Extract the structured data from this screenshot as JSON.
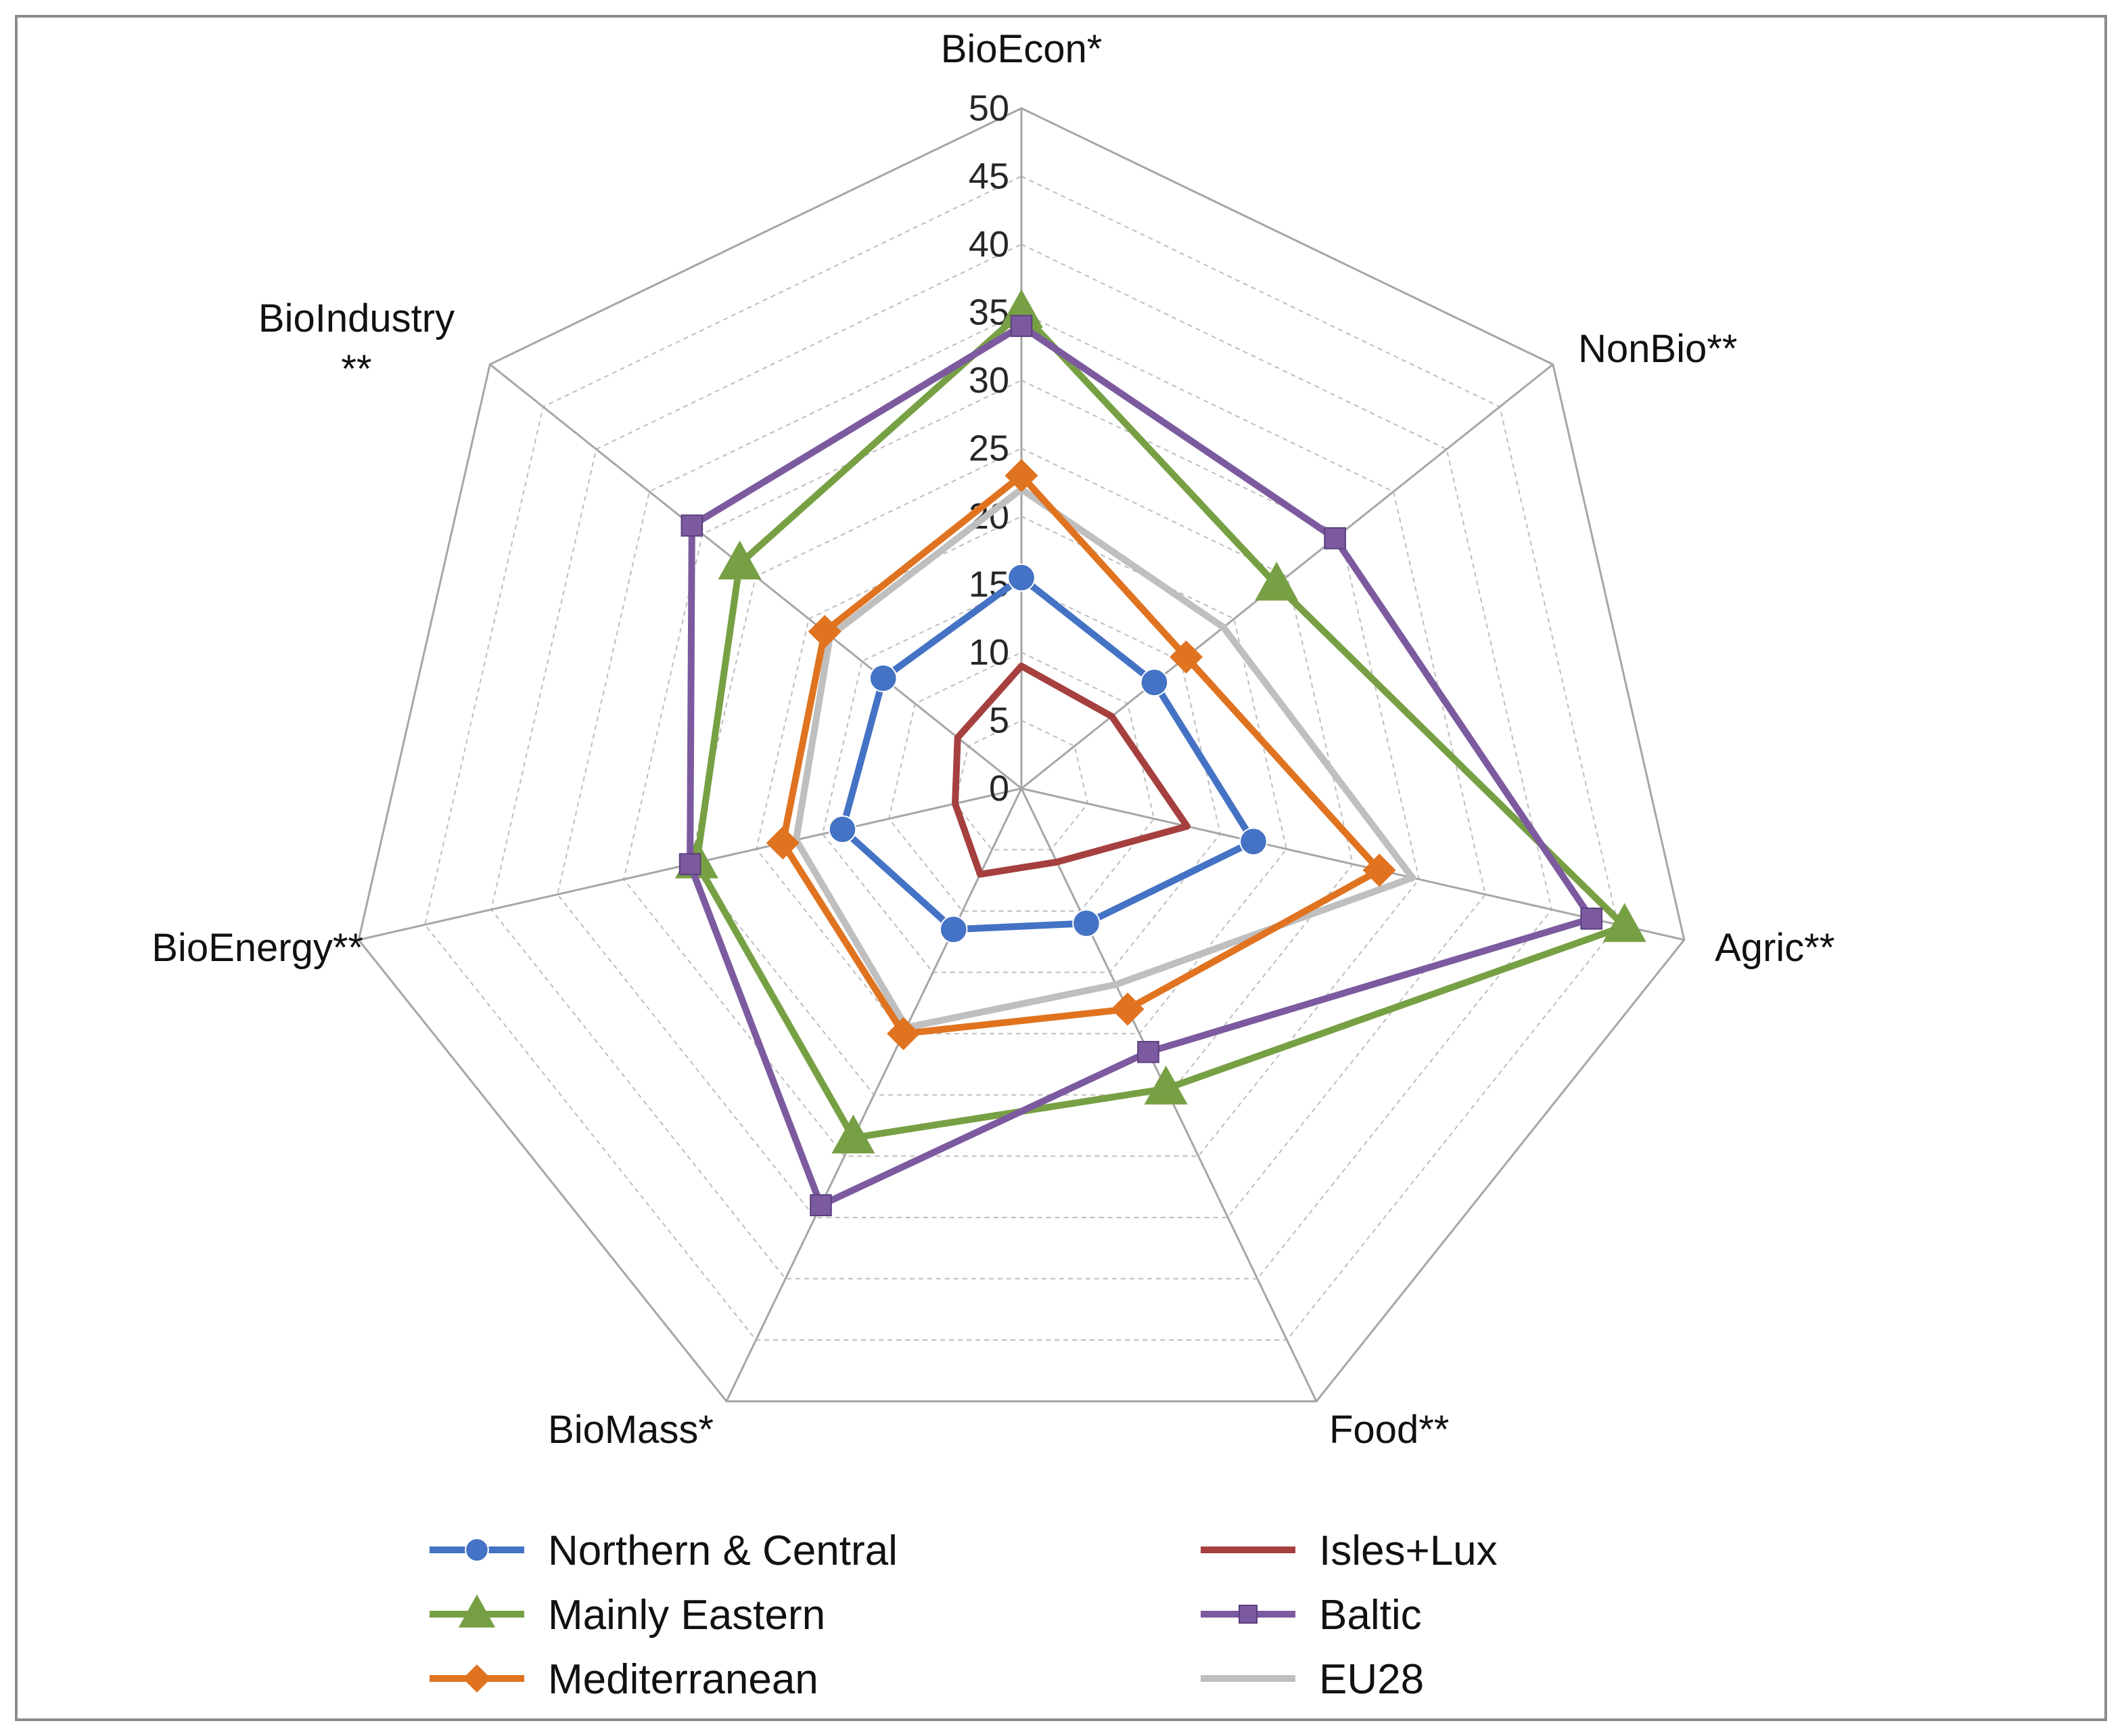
{
  "chart_data": {
    "type": "radar",
    "title": "",
    "axes": [
      {
        "label": "BioEcon*"
      },
      {
        "label": "NonBio**"
      },
      {
        "label": "Agric**"
      },
      {
        "label": "Food**"
      },
      {
        "label": "BioMass*"
      },
      {
        "label": "BioEnergy**"
      },
      {
        "label": "BioIndustry",
        "label_line2": "**"
      }
    ],
    "rlim": [
      0,
      50
    ],
    "ticks": [
      "0",
      "5",
      "10",
      "15",
      "20",
      "25",
      "30",
      "35",
      "40",
      "45",
      "50"
    ],
    "grid": true,
    "legend_position": "bottom",
    "series": [
      {
        "name": "Northern & Central",
        "color": "#4472c4",
        "marker": "circle",
        "values": [
          15.5,
          12.5,
          17.5,
          11,
          11.5,
          13.5,
          13
        ]
      },
      {
        "name": "Isles+Lux",
        "color": "#a5403f",
        "marker": "none",
        "values": [
          9,
          8.5,
          12.5,
          6,
          7,
          5,
          6
        ]
      },
      {
        "name": "Mainly Eastern",
        "color": "#77a044",
        "marker": "triangle",
        "values": [
          35,
          24,
          45.5,
          24.5,
          28.5,
          24.5,
          26.5
        ]
      },
      {
        "name": "Baltic",
        "color": "#7c5a9f",
        "marker": "square",
        "values": [
          34,
          29.5,
          43,
          21.5,
          34,
          25,
          31
        ]
      },
      {
        "name": "Mediterranean",
        "color": "#e07320",
        "marker": "diamond",
        "values": [
          23,
          15.5,
          27,
          18,
          20,
          18,
          18.5
        ]
      },
      {
        "name": "EU28",
        "color": "#bfbfbf",
        "marker": "none",
        "values": [
          22,
          19,
          29.5,
          16,
          19.5,
          17,
          18
        ]
      }
    ]
  }
}
